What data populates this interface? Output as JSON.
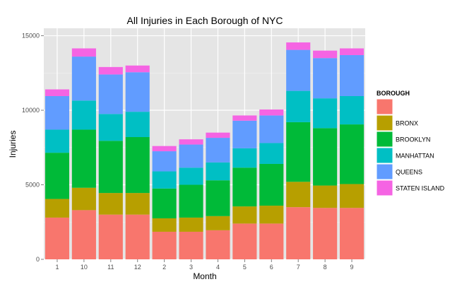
{
  "chart_data": {
    "type": "bar",
    "stacked": true,
    "title": "All Injuries in Each Borough of NYC",
    "xlabel": "Month",
    "ylabel": "Injuries",
    "ylim": [
      0,
      15500
    ],
    "yticks": [
      0,
      5000,
      10000,
      15000
    ],
    "grid": true,
    "legend_position": "right",
    "legend_title": "BOROUGH",
    "categories": [
      "1",
      "10",
      "11",
      "12",
      "2",
      "3",
      "4",
      "5",
      "6",
      "7",
      "8",
      "9"
    ],
    "series": [
      {
        "name": "",
        "color": "#F8766D",
        "values": [
          2800,
          3300,
          3000,
          3000,
          1850,
          1850,
          1950,
          2400,
          2400,
          3500,
          3450,
          3450
        ]
      },
      {
        "name": "BRONX",
        "color": "#B79F00",
        "values": [
          1250,
          1500,
          1450,
          1450,
          900,
          950,
          950,
          1150,
          1200,
          1700,
          1500,
          1600
        ]
      },
      {
        "name": "BROOKLYN",
        "color": "#00BA38",
        "values": [
          3100,
          3900,
          3500,
          3750,
          2000,
          2200,
          2400,
          2600,
          2800,
          4000,
          3850,
          4000
        ]
      },
      {
        "name": "MANHATTAN",
        "color": "#00BFC4",
        "values": [
          1550,
          1950,
          1800,
          1700,
          1150,
          1150,
          1200,
          1300,
          1400,
          2100,
          2000,
          1900
        ]
      },
      {
        "name": "QUEENS",
        "color": "#619CFF",
        "values": [
          2250,
          2950,
          2650,
          2650,
          1350,
          1550,
          1650,
          1850,
          1850,
          2750,
          2700,
          2750
        ]
      },
      {
        "name": "STATEN ISLAND",
        "color": "#F564E3",
        "values": [
          450,
          550,
          500,
          450,
          350,
          350,
          350,
          350,
          400,
          500,
          500,
          450
        ]
      }
    ]
  }
}
